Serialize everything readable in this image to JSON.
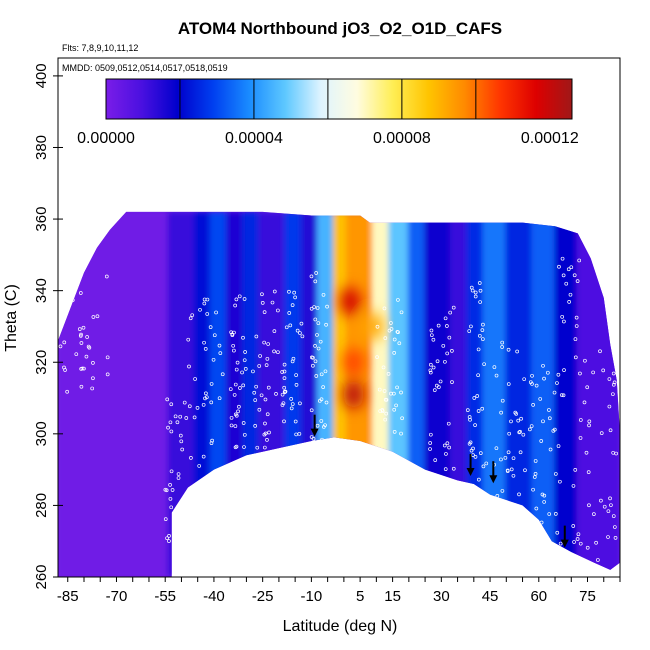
{
  "chart_data": {
    "type": "heatmap",
    "title": "ATOM4 Northbound jO3_O2_O1D_CAFS",
    "flights_note": "Flts: 7,8,9,10,11,12",
    "dates_note": "MMDD: 0509,0512,0514,0517,0518,0519",
    "xlabel": "Latitude (deg N)",
    "ylabel": "Theta (C)",
    "xlim": [
      -88,
      85
    ],
    "ylim": [
      260,
      405
    ],
    "x_ticks": [
      "-85",
      "-70",
      "-55",
      "-40",
      "-25",
      "-10",
      "5",
      "15",
      "30",
      "45",
      "60",
      "75"
    ],
    "y_ticks": [
      "260",
      "280",
      "300",
      "320",
      "340",
      "360",
      "380",
      "400"
    ],
    "colorbar": {
      "range": [
        0,
        0.000126
      ],
      "tick_labels": [
        "0.00000",
        "0.00004",
        "0.00008",
        "0.00012"
      ],
      "tick_values": [
        0,
        4e-05,
        8e-05,
        0.00012
      ],
      "colors": [
        "#7a1de8",
        "#4a10e0",
        "#0000cc",
        "#0040f0",
        "#1a8cff",
        "#5ec8ff",
        "#dff4ff",
        "#fffce0",
        "#ffee55",
        "#ffc400",
        "#ff8a00",
        "#ff3500",
        "#dd0000",
        "#a01818"
      ]
    },
    "surface_boundary": [
      [
        -53,
        264
      ],
      [
        -53,
        278
      ],
      [
        -48,
        285
      ],
      [
        -40,
        290
      ],
      [
        -30,
        294
      ],
      [
        -20,
        296
      ],
      [
        -10,
        298
      ],
      [
        -3,
        299
      ],
      [
        5,
        298
      ],
      [
        15,
        295
      ],
      [
        25,
        290
      ],
      [
        35,
        287
      ],
      [
        40,
        286
      ],
      [
        45,
        283
      ],
      [
        55,
        280
      ],
      [
        60,
        276
      ],
      [
        64,
        270
      ],
      [
        70,
        267
      ],
      [
        77,
        264
      ],
      [
        82,
        262
      ]
    ],
    "domain_top": [
      [
        -88,
        326
      ],
      [
        -80,
        345
      ],
      [
        -76,
        352
      ],
      [
        -72,
        357
      ],
      [
        -67,
        362
      ],
      [
        -60,
        362
      ],
      [
        -40,
        362
      ],
      [
        -25,
        362
      ],
      [
        -10,
        361
      ],
      [
        5,
        361
      ],
      [
        8,
        359
      ],
      [
        15,
        359
      ],
      [
        25,
        359
      ],
      [
        40,
        359
      ],
      [
        55,
        359
      ],
      [
        65,
        358
      ],
      [
        72,
        356
      ],
      [
        76,
        349
      ],
      [
        80,
        338
      ],
      [
        82,
        325
      ],
      [
        84,
        315
      ],
      [
        85,
        300
      ],
      [
        85,
        264
      ]
    ],
    "latitude_bands": [
      {
        "lat_range": [
          -88,
          -54
        ],
        "value": 2e-06
      },
      {
        "lat_range": [
          -54,
          -46
        ],
        "value": 1.2e-05
      },
      {
        "lat_range": [
          -46,
          -41
        ],
        "value": 2.2e-05
      },
      {
        "lat_range": [
          -41,
          -36
        ],
        "value": 3e-05
      },
      {
        "lat_range": [
          -36,
          -31
        ],
        "value": 1.6e-05
      },
      {
        "lat_range": [
          -31,
          -26
        ],
        "value": 2.5e-05
      },
      {
        "lat_range": [
          -26,
          -18
        ],
        "value": 1.2e-05
      },
      {
        "lat_range": [
          -18,
          -13
        ],
        "value": 2.8e-05
      },
      {
        "lat_range": [
          -13,
          -8
        ],
        "value": 1.5e-05
      },
      {
        "lat_range": [
          -8,
          -3
        ],
        "value": 4.5e-05
      },
      {
        "lat_range": [
          -3,
          1
        ],
        "value": 8.8e-05
      },
      {
        "lat_range": [
          1,
          9
        ],
        "value": 9.5e-05
      },
      {
        "lat_range": [
          9,
          14
        ],
        "value": 7e-05
      },
      {
        "lat_range": [
          14,
          20
        ],
        "value": 4.8e-05
      },
      {
        "lat_range": [
          20,
          25
        ],
        "value": 3.3e-05
      },
      {
        "lat_range": [
          25,
          33
        ],
        "value": 1.8e-05
      },
      {
        "lat_range": [
          33,
          38
        ],
        "value": 1.2e-05
      },
      {
        "lat_range": [
          38,
          43
        ],
        "value": 2.6e-05
      },
      {
        "lat_range": [
          43,
          50
        ],
        "value": 3.6e-05
      },
      {
        "lat_range": [
          50,
          58
        ],
        "value": 2.5e-05
      },
      {
        "lat_range": [
          58,
          65
        ],
        "value": 3.3e-05
      },
      {
        "lat_range": [
          65,
          72
        ],
        "value": 2e-05
      },
      {
        "lat_range": [
          72,
          85
        ],
        "value": 9e-06
      }
    ],
    "hotspots": [
      {
        "lat": 2,
        "theta": 337,
        "value": 0.000118
      },
      {
        "lat": 3,
        "theta": 320,
        "value": 0.000105
      },
      {
        "lat": 3,
        "theta": 311,
        "value": 0.000122
      },
      {
        "lat": 9,
        "theta": 330,
        "value": 9.2e-05
      }
    ],
    "arrows": [
      {
        "lat": -9,
        "theta": 302
      },
      {
        "lat": 39,
        "theta": 291
      },
      {
        "lat": 46,
        "theta": 289
      },
      {
        "lat": 68,
        "theta": 271
      }
    ],
    "flight_tracks": [
      {
        "lat_range": [
          -88,
          -72
        ],
        "theta_range": [
          310,
          345
        ]
      },
      {
        "lat_range": [
          -55,
          -48
        ],
        "theta_range": [
          270,
          310
        ]
      },
      {
        "lat_range": [
          -48,
          -37
        ],
        "theta_range": [
          290,
          338
        ]
      },
      {
        "lat_range": [
          -35,
          -30
        ],
        "theta_range": [
          295,
          340
        ]
      },
      {
        "lat_range": [
          -28,
          -20
        ],
        "theta_range": [
          296,
          340
        ]
      },
      {
        "lat_range": [
          -19,
          -12
        ],
        "theta_range": [
          297,
          342
        ]
      },
      {
        "lat_range": [
          -10,
          -5
        ],
        "theta_range": [
          298,
          345
        ]
      },
      {
        "lat_range": [
          10,
          18
        ],
        "theta_range": [
          300,
          338
        ]
      },
      {
        "lat_range": [
          26,
          34
        ],
        "theta_range": [
          290,
          336
        ]
      },
      {
        "lat_range": [
          38,
          44
        ],
        "theta_range": [
          287,
          344
        ]
      },
      {
        "lat_range": [
          46,
          56
        ],
        "theta_range": [
          282,
          326
        ]
      },
      {
        "lat_range": [
          57,
          66
        ],
        "theta_range": [
          272,
          320
        ]
      },
      {
        "lat_range": [
          66,
          73
        ],
        "theta_range": [
          268,
          352
        ]
      },
      {
        "lat_range": [
          74,
          84
        ],
        "theta_range": [
          264,
          330
        ]
      }
    ]
  }
}
